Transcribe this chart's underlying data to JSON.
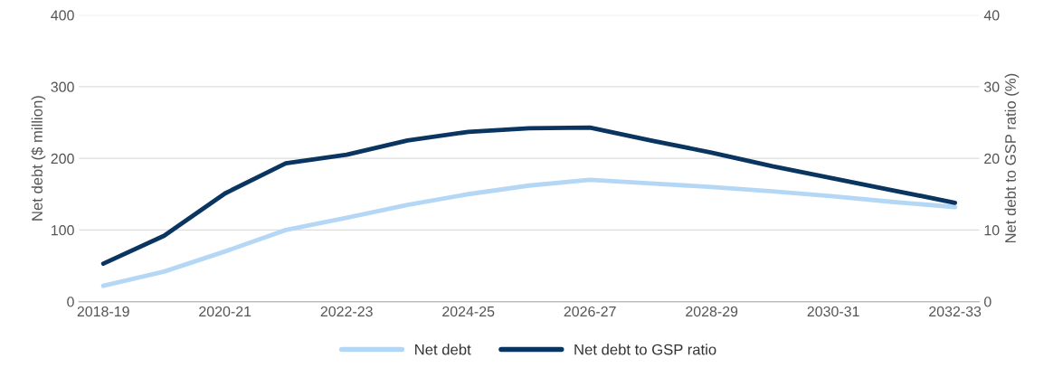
{
  "chart_data": {
    "type": "line",
    "xlabel": null,
    "ylabel": "Net debt ($ million)",
    "y2label": "Net debt to GSP ratio (%)",
    "categories": [
      "2018-19",
      null,
      "2020-21",
      null,
      "2022-23",
      null,
      "2024-25",
      null,
      "2026-27",
      null,
      "2028-29",
      null,
      "2030-31",
      null,
      "2032-33"
    ],
    "series": [
      {
        "name": "Net debt",
        "color": "#b4d7f5",
        "values": [
          22,
          42,
          70,
          100,
          117,
          135,
          150,
          162,
          170,
          165,
          160,
          154,
          147,
          139,
          132
        ]
      },
      {
        "name": "Net debt to GSP ratio",
        "color": "#0a3560",
        "axis": "y2",
        "values": [
          5.3,
          9.2,
          15.1,
          19.3,
          20.5,
          22.5,
          23.7,
          24.2,
          24.3,
          22.5,
          20.8,
          18.9,
          17.2,
          15.5,
          13.8
        ]
      }
    ],
    "ylim": [
      0,
      400
    ],
    "yticks": [
      0,
      100,
      200,
      300,
      400
    ],
    "y2lim": [
      0,
      40
    ],
    "y2ticks": [
      0,
      10,
      20,
      30,
      40
    ],
    "grid": "y",
    "legend": "bottom",
    "marker": "none",
    "line_style": "solid"
  }
}
